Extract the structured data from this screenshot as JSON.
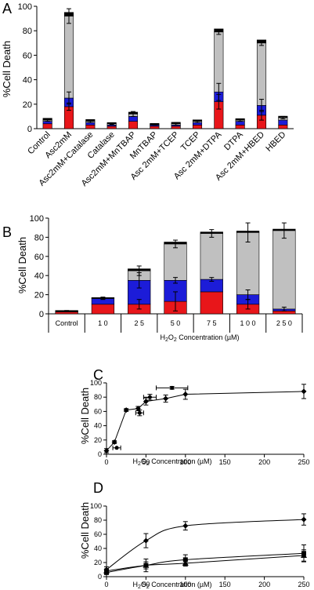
{
  "chart_data": [
    {
      "panel_label": "A",
      "type": "bar",
      "stacked": true,
      "ylabel": "%Cell Death",
      "ylim": [
        0,
        100
      ],
      "yticks": [
        0,
        20,
        40,
        60,
        80,
        100
      ],
      "categories": [
        "Control",
        "Asc2mM",
        "Asc2mM+Catalase",
        "Catalase",
        "Asc2mM+MnTBAP",
        "MnTBAP",
        "Asc 2mM+TCEP",
        "TCEP",
        "Asc 2mM+DTPA",
        "DTPA",
        "Asc 2mM+HBED",
        "HBED"
      ],
      "series": [
        {
          "color": "#e8161a",
          "values": [
            4,
            18,
            3,
            2,
            6,
            2,
            2,
            3,
            22,
            3,
            11,
            3
          ]
        },
        {
          "color": "#1c1cd8",
          "values": [
            2,
            7,
            2,
            1,
            4,
            1,
            1,
            2,
            8,
            3,
            8,
            4
          ]
        },
        {
          "color": "#c0c0c0",
          "values": [
            1,
            67,
            1,
            1,
            2,
            0.5,
            1,
            1,
            49,
            1,
            51,
            2
          ]
        },
        {
          "color": "#000000",
          "values": [
            1.5,
            3,
            1.5,
            1,
            1.5,
            0.8,
            1.2,
            1.2,
            2.5,
            1.2,
            2.5,
            1.2
          ]
        }
      ],
      "errors": [
        [
          0,
          3,
          0,
          0,
          0,
          0,
          0,
          0,
          6,
          0,
          4,
          0
        ],
        [
          0,
          5,
          0,
          0,
          0,
          0,
          0,
          0,
          7,
          0,
          5,
          0
        ],
        [
          1,
          6,
          1,
          0.5,
          2,
          0.5,
          1,
          1,
          2,
          1,
          2,
          1
        ]
      ]
    },
    {
      "panel_label": "B",
      "type": "bar",
      "stacked": true,
      "ylabel": "%Cell Death",
      "xlabel": "H2O2 Concentration (µM)",
      "ylim": [
        0,
        100
      ],
      "yticks": [
        0,
        20,
        40,
        60,
        80,
        100
      ],
      "categories": [
        "Control",
        "1 0",
        "2 5",
        "5 0",
        "7 5",
        "1 0 0",
        "2 5 0"
      ],
      "series": [
        {
          "color": "#e8161a",
          "values": [
            2,
            10,
            10,
            13,
            23,
            10,
            3
          ]
        },
        {
          "color": "#1c1cd8",
          "values": [
            0.5,
            6,
            25,
            22,
            13,
            10,
            2
          ]
        },
        {
          "color": "#c0c0c0",
          "values": [
            0.5,
            0.5,
            10,
            38,
            48,
            65,
            82
          ]
        },
        {
          "color": "#000000",
          "values": [
            0.5,
            0.5,
            2,
            2,
            1.5,
            1.5,
            1.5
          ]
        }
      ],
      "errors": [
        [
          0,
          0,
          5,
          10,
          0,
          5,
          0
        ],
        [
          0,
          1,
          8,
          3,
          2,
          5,
          2
        ],
        [
          0.5,
          1,
          5,
          4,
          4,
          10,
          8
        ]
      ]
    },
    {
      "panel_label": "C",
      "type": "line",
      "ylabel": "%Cell Death",
      "xlabel": "H2O2 Concentration (µM)",
      "ylim": [
        0,
        100
      ],
      "yticks": [
        0,
        20,
        40,
        60,
        80,
        100
      ],
      "xlim": [
        0,
        250
      ],
      "xticks": [
        0,
        50,
        100,
        150,
        200,
        250
      ],
      "series": [
        {
          "x": [
            0,
            10,
            25,
            40,
            50,
            75,
            100,
            250
          ],
          "y": [
            5,
            17,
            62,
            64,
            74,
            78,
            84,
            88
          ],
          "yerr": [
            3,
            2,
            2,
            3,
            5,
            5,
            7,
            10
          ]
        }
      ],
      "extra_points": [
        {
          "x": 13,
          "y": 9,
          "xerr": 5
        },
        {
          "x": 42,
          "y": 58,
          "xerr": 5,
          "yerr": 4
        },
        {
          "x": 55,
          "y": 80,
          "xerr": 8,
          "yerr": 4
        },
        {
          "x": 83,
          "y": 93,
          "xerr": 20,
          "yerr": 2
        }
      ]
    },
    {
      "panel_label": "D",
      "type": "line",
      "ylabel": "%Cell Death",
      "xlabel": "H2O2 Concentration (µM)",
      "ylim": [
        0,
        100
      ],
      "yticks": [
        0,
        20,
        40,
        60,
        80,
        100
      ],
      "xlim": [
        0,
        250
      ],
      "xticks": [
        0,
        50,
        100,
        150,
        200,
        250
      ],
      "series": [
        {
          "marker": "diamond",
          "x": [
            0,
            50,
            100,
            250
          ],
          "y": [
            10,
            51,
            72,
            81
          ],
          "yerr": [
            4,
            10,
            6,
            8
          ]
        },
        {
          "marker": "square",
          "x": [
            0,
            50,
            100,
            250
          ],
          "y": [
            6,
            16,
            24,
            33
          ],
          "yerr": [
            3,
            9,
            7,
            12
          ]
        },
        {
          "marker": "triangle",
          "x": [
            0,
            50,
            100,
            250
          ],
          "y": [
            8,
            16,
            19,
            30
          ],
          "yerr": [
            3,
            5,
            4,
            8
          ]
        }
      ]
    }
  ]
}
